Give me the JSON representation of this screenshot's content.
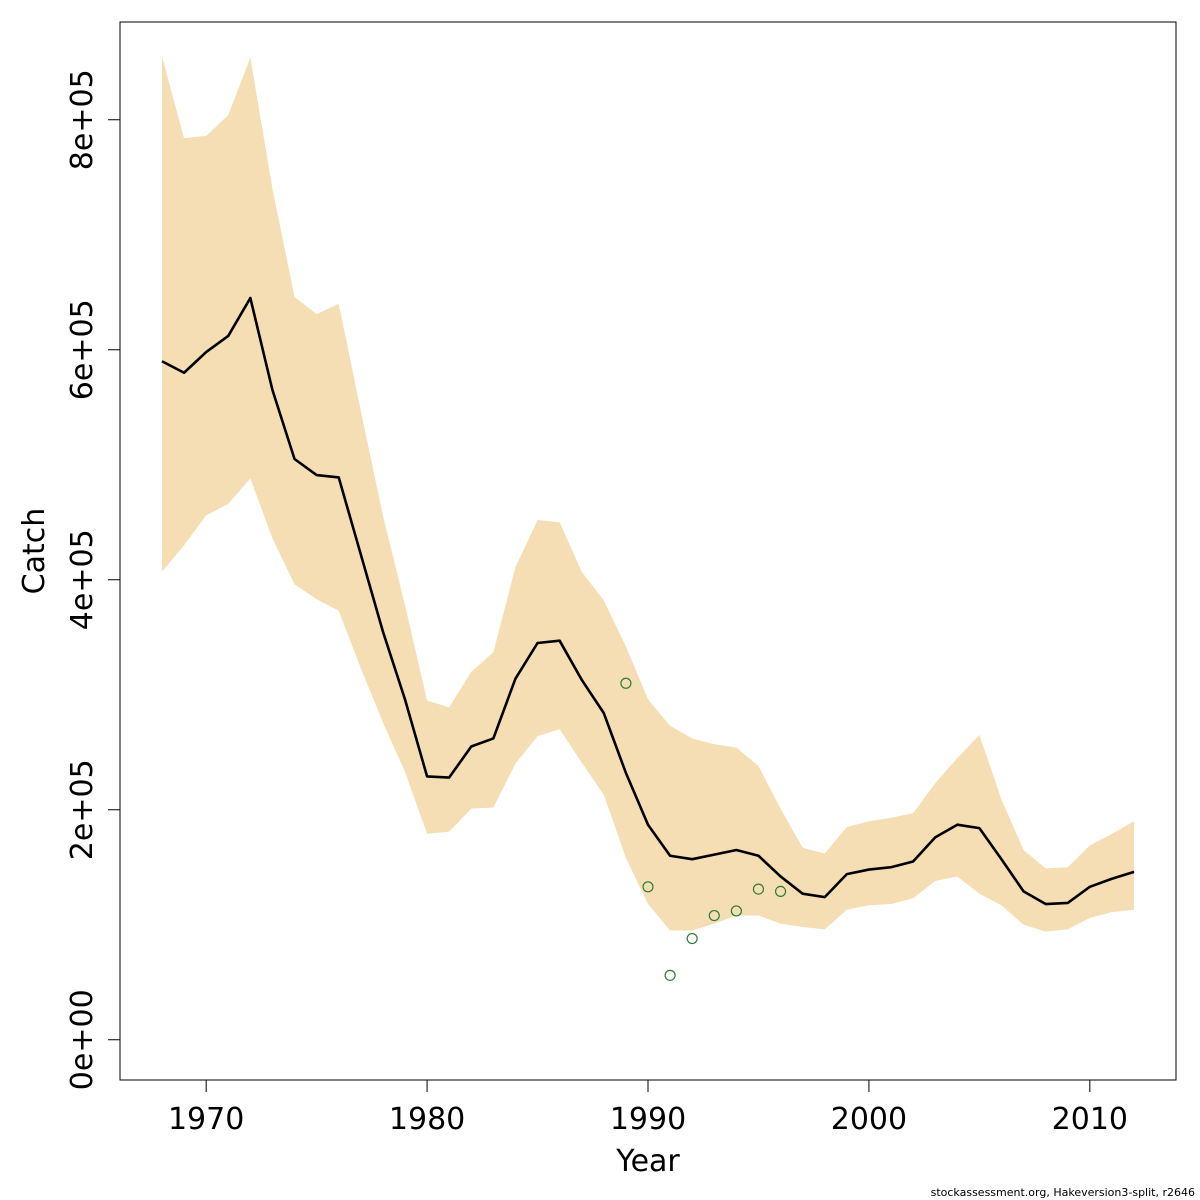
{
  "chart_data": {
    "type": "line",
    "title": "",
    "xlabel": "Year",
    "ylabel": "Catch",
    "xlim": [
      1966.1,
      2013.9
    ],
    "ylim": [
      -35000,
      885000
    ],
    "x_ticks": [
      1970,
      1980,
      1990,
      2000,
      2010
    ],
    "y_ticks": [
      0,
      200000,
      400000,
      600000,
      800000
    ],
    "x_tick_labels": [
      "1970",
      "1980",
      "1990",
      "2000",
      "2010"
    ],
    "y_tick_labels": [
      "0e+00",
      "2e+05",
      "4e+05",
      "6e+05",
      "8e+05"
    ],
    "grid": false,
    "credit": "stockassessment.org, Hakeversion3-split, r2646",
    "series": [
      {
        "kind": "band",
        "color": "#f5deb3",
        "x": [
          1968,
          1969,
          1970,
          1971,
          1972,
          1973,
          1974,
          1975,
          1976,
          1977,
          1978,
          1979,
          1980,
          1981,
          1982,
          1983,
          1984,
          1985,
          1986,
          1987,
          1988,
          1989,
          1990,
          1991,
          1992,
          1993,
          1994,
          1995,
          1996,
          1997,
          1998,
          1999,
          2000,
          2001,
          2002,
          2003,
          2004,
          2005,
          2006,
          2007,
          2008,
          2009,
          2010,
          2011,
          2012
        ],
        "lower": [
          407000,
          430000,
          456000,
          466000,
          488000,
          436000,
          396000,
          383000,
          373000,
          323000,
          276000,
          233000,
          179000,
          181000,
          201000,
          202000,
          240000,
          264000,
          270000,
          241000,
          213000,
          158000,
          118000,
          95000,
          95000,
          101000,
          108000,
          108000,
          101000,
          98000,
          96000,
          113000,
          117000,
          118000,
          123000,
          138000,
          142000,
          127000,
          117000,
          100000,
          94000,
          96000,
          106000,
          111000,
          113000
        ],
        "upper": [
          855000,
          784000,
          786000,
          804000,
          854000,
          740000,
          646000,
          631000,
          640000,
          547000,
          456000,
          378000,
          295000,
          289000,
          320000,
          337000,
          411000,
          452000,
          450000,
          407000,
          382000,
          342000,
          296000,
          273000,
          262000,
          257000,
          254000,
          238000,
          201000,
          167000,
          162000,
          185000,
          190000,
          193000,
          197000,
          223000,
          245000,
          265000,
          209000,
          165000,
          149000,
          150000,
          169000,
          179000,
          190000
        ]
      },
      {
        "kind": "line",
        "color": "#000000",
        "x": [
          1968,
          1969,
          1970,
          1971,
          1972,
          1973,
          1974,
          1975,
          1976,
          1977,
          1978,
          1979,
          1980,
          1981,
          1982,
          1983,
          1984,
          1985,
          1986,
          1987,
          1988,
          1989,
          1990,
          1991,
          1992,
          1993,
          1994,
          1995,
          1996,
          1997,
          1998,
          1999,
          2000,
          2001,
          2002,
          2003,
          2004,
          2005,
          2006,
          2007,
          2008,
          2009,
          2010,
          2011,
          2012
        ],
        "y": [
          590000,
          580000,
          598000,
          612000,
          645000,
          565000,
          505000,
          491000,
          489000,
          422000,
          355000,
          296000,
          229000,
          228000,
          255000,
          262000,
          314000,
          345000,
          347000,
          313000,
          284000,
          232000,
          187000,
          160000,
          157000,
          161000,
          165000,
          160000,
          142000,
          127000,
          124000,
          144000,
          148000,
          150000,
          155000,
          176000,
          187000,
          184000,
          157000,
          129000,
          118000,
          119000,
          133000,
          140000,
          146000
        ]
      },
      {
        "kind": "points",
        "color": "#2e7d32",
        "x": [
          1989,
          1990,
          1991,
          1992,
          1993,
          1994,
          1995,
          1996
        ],
        "y": [
          310000,
          133000,
          56000,
          88000,
          108000,
          112000,
          131000,
          129000
        ]
      }
    ]
  }
}
